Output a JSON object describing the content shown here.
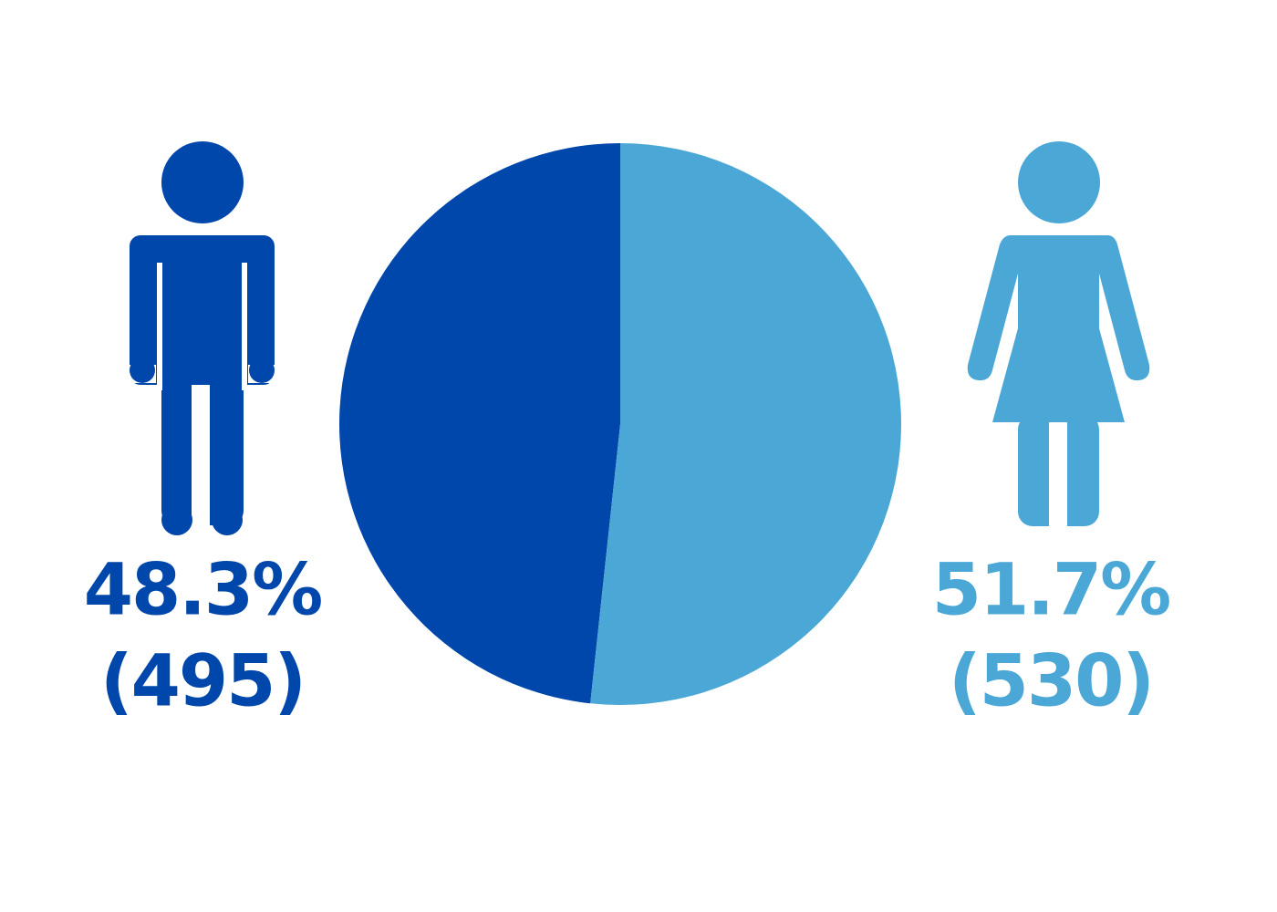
{
  "chart_data": {
    "type": "pie",
    "values": [
      48.3,
      51.7
    ],
    "value_labels": [
      "48.3%",
      "51.7%"
    ],
    "counts": [
      495,
      530
    ],
    "count_labels": [
      "(495)",
      "(530)"
    ],
    "colors": [
      "#0047AB",
      "#4BA8D6"
    ]
  }
}
